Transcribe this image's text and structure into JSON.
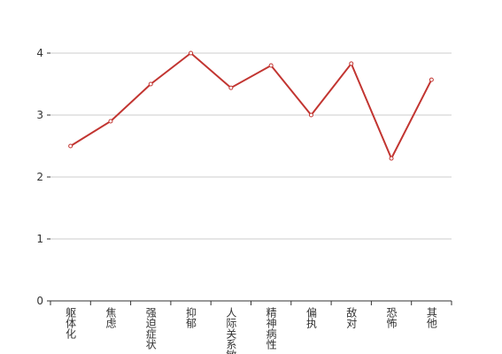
{
  "chart_data": {
    "type": "line",
    "categories": [
      "躯体化",
      "焦虑",
      "强迫症状",
      "抑郁",
      "人际关系敏感",
      "精神病性",
      "偏执",
      "敌对",
      "恐怖",
      "其他"
    ],
    "series": [
      {
        "color": "#c23531",
        "values": [
          2.5,
          2.9,
          3.5,
          4.0,
          3.44,
          3.8,
          3.0,
          3.83,
          2.3,
          3.57
        ]
      }
    ],
    "ylim": [
      0,
      4
    ],
    "yticks": [
      0,
      1,
      2,
      3,
      4
    ],
    "grid": true
  }
}
